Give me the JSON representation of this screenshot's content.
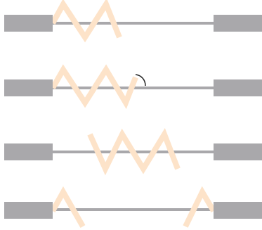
{
  "diagram": {
    "colors": {
      "block": "#a9a8ab",
      "wire": "#a9a8ab",
      "coil": "#fde3c9",
      "hook": "#222222"
    },
    "rows": [
      {
        "id": "row-1",
        "coil": "zigzag-left-attached",
        "peaks": 2
      },
      {
        "id": "row-2",
        "coil": "zigzag-left-attached-with-hook",
        "peaks": 3,
        "hook": true
      },
      {
        "id": "row-3",
        "coil": "zigzag-centered-detached",
        "peaks": 3
      },
      {
        "id": "row-4",
        "coil": "split-stretched-ends",
        "peaks": 2
      }
    ]
  }
}
